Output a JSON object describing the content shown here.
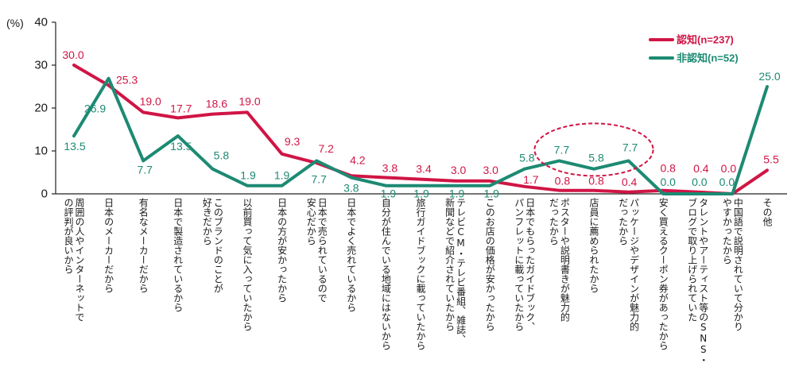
{
  "chart_data": {
    "type": "line",
    "ylabel": "(%)",
    "ylim": [
      0,
      40
    ],
    "yticks": [
      0,
      10,
      20,
      30,
      40
    ],
    "grid": false,
    "legend": "top-right",
    "categories": [
      "周囲の人やインターネットで\nの評判が良いから",
      "日本のメーカーだから",
      "有名なメーカーだから",
      "日本で製造されているから",
      "このブランドのことが\n好きだから",
      "以前買って気に入っていたから",
      "日本の方が安かったから",
      "日本で売られているので\n安心だから",
      "日本でよく売れているから",
      "自分が住んでいる地域にはないから",
      "旅行ガイドブックに載っていたから",
      "テレビCM・テレビ番組、雑誌、\n新聞などで紹介されていたから",
      "このお店の価格が安かったから",
      "日本でもらったガイドブック、\nパンフレットに載っていたから",
      "ポスターや説明書きが魅力的\nだったから",
      "店員に薦められたから",
      "パッケージやデザインが魅力的\nだったから",
      "安く買えるクーポン券があったから",
      "タレントやアーティスト等のSNS・\nブログで取り上げられていた",
      "中国語で説明されていて分かり\nやすかったから",
      "その他"
    ],
    "series": [
      {
        "name": "認知(n=237)",
        "color": "#d01545",
        "values": [
          30.0,
          25.3,
          19.0,
          17.7,
          18.6,
          19.0,
          9.3,
          7.2,
          4.2,
          3.8,
          3.4,
          3.0,
          3.0,
          1.7,
          0.8,
          0.8,
          0.4,
          0.8,
          0.4,
          0.0,
          5.5
        ]
      },
      {
        "name": "非認知(n=52)",
        "color": "#1d8a73",
        "values": [
          13.5,
          26.9,
          7.7,
          13.5,
          5.8,
          1.9,
          1.9,
          7.7,
          3.8,
          1.9,
          1.9,
          1.9,
          1.9,
          5.8,
          7.7,
          5.8,
          7.7,
          0.0,
          0.0,
          0.0,
          25.0
        ]
      }
    ],
    "highlight": {
      "series_index": 1,
      "category_indices": [
        14,
        15,
        16
      ],
      "color": "#d01545"
    }
  }
}
